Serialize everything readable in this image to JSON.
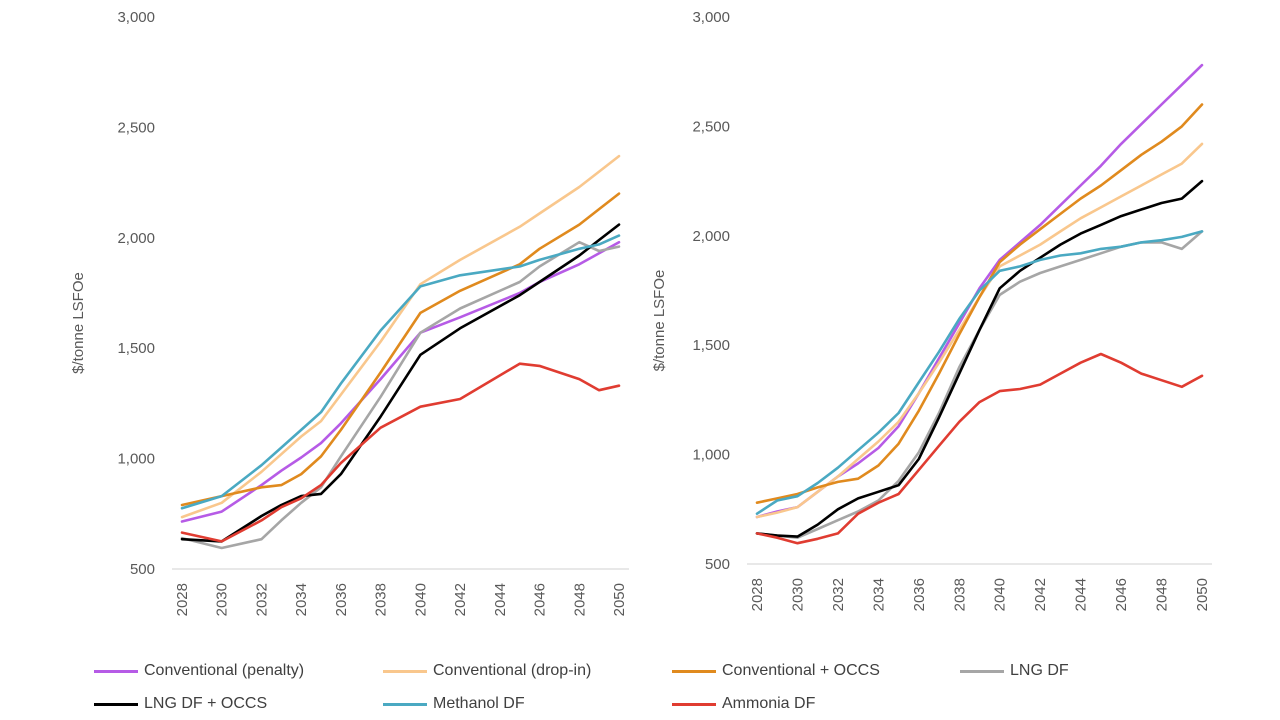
{
  "legend": [
    {
      "name": "Conventional (penalty)",
      "color": "#b65be6"
    },
    {
      "name": "Conventional (drop-in)",
      "color": "#f9c78d"
    },
    {
      "name": "Conventional + OCCS",
      "color": "#e08a1e"
    },
    {
      "name": "LNG DF",
      "color": "#a6a6a6"
    },
    {
      "name": "LNG DF + OCCS",
      "color": "#000000"
    },
    {
      "name": "Methanol DF",
      "color": "#4aa9c2"
    },
    {
      "name": "Ammonia DF",
      "color": "#e03c31"
    }
  ],
  "chart_data": [
    {
      "type": "line",
      "ylabel": "$/tonne LSFOe",
      "ylim": [
        500,
        3000
      ],
      "yticks": [
        "500",
        "1,000",
        "1,500",
        "2,000",
        "2,500",
        "3,000"
      ],
      "xticks": [
        "2028",
        "2030",
        "2032",
        "2034",
        "2036",
        "2038",
        "2040",
        "2042",
        "2044",
        "2046",
        "2048",
        "2050"
      ],
      "x": [
        2028,
        2030,
        2032,
        2033,
        2034,
        2035,
        2036,
        2038,
        2040,
        2042,
        2045,
        2046,
        2048,
        2049,
        2050
      ],
      "series": [
        {
          "name": "Conventional (penalty)",
          "values": [
            715,
            760,
            880,
            945,
            1005,
            1070,
            1160,
            1360,
            1570,
            1640,
            1750,
            1800,
            1880,
            1930,
            1980
          ]
        },
        {
          "name": "Conventional (drop-in)",
          "values": [
            735,
            800,
            940,
            1020,
            1100,
            1170,
            1290,
            1530,
            1790,
            1900,
            2050,
            2110,
            2230,
            2300,
            2370
          ]
        },
        {
          "name": "Conventional + OCCS",
          "values": [
            790,
            830,
            870,
            880,
            930,
            1010,
            1130,
            1390,
            1660,
            1760,
            1880,
            1950,
            2060,
            2130,
            2200
          ]
        },
        {
          "name": "LNG DF",
          "values": [
            640,
            595,
            635,
            720,
            800,
            870,
            1010,
            1280,
            1570,
            1680,
            1800,
            1870,
            1980,
            1940,
            1960
          ]
        },
        {
          "name": "LNG DF + OCCS",
          "values": [
            635,
            625,
            740,
            790,
            830,
            840,
            930,
            1190,
            1470,
            1590,
            1740,
            1800,
            1920,
            1990,
            2060
          ]
        },
        {
          "name": "Methanol DF",
          "values": [
            775,
            830,
            970,
            1050,
            1130,
            1210,
            1340,
            1580,
            1780,
            1830,
            1870,
            1900,
            1950,
            1970,
            2010
          ]
        },
        {
          "name": "Ammonia DF",
          "values": [
            665,
            625,
            720,
            780,
            820,
            880,
            980,
            1140,
            1235,
            1270,
            1430,
            1420,
            1360,
            1310,
            1330
          ]
        }
      ]
    },
    {
      "type": "line",
      "ylabel": "$/tonne LSFOe",
      "ylim": [
        500,
        3000
      ],
      "yticks": [
        "500",
        "1,000",
        "1,500",
        "2,000",
        "2,500",
        "3,000"
      ],
      "xticks": [
        "2028",
        "2030",
        "2032",
        "2034",
        "2036",
        "2038",
        "2040",
        "2042",
        "2044",
        "2046",
        "2048",
        "2050"
      ],
      "x": [
        2028,
        2029,
        2030,
        2031,
        2032,
        2033,
        2034,
        2035,
        2036,
        2037,
        2038,
        2039,
        2040,
        2041,
        2042,
        2043,
        2044,
        2045,
        2046,
        2047,
        2048,
        2049,
        2050
      ],
      "series": [
        {
          "name": "Conventional (penalty)",
          "values": [
            715,
            740,
            760,
            830,
            900,
            960,
            1030,
            1130,
            1280,
            1440,
            1600,
            1760,
            1890,
            1970,
            2050,
            2140,
            2230,
            2320,
            2420,
            2510,
            2600,
            2690,
            2780
          ]
        },
        {
          "name": "Conventional (drop-in)",
          "values": [
            715,
            735,
            760,
            830,
            900,
            980,
            1060,
            1150,
            1280,
            1420,
            1570,
            1720,
            1860,
            1910,
            1960,
            2020,
            2080,
            2130,
            2180,
            2230,
            2280,
            2330,
            2420
          ]
        },
        {
          "name": "Conventional + OCCS",
          "values": [
            780,
            800,
            820,
            850,
            875,
            890,
            950,
            1050,
            1200,
            1370,
            1550,
            1720,
            1880,
            1960,
            2030,
            2100,
            2170,
            2230,
            2300,
            2370,
            2430,
            2500,
            2600
          ]
        },
        {
          "name": "LNG DF",
          "values": [
            640,
            630,
            620,
            660,
            700,
            740,
            790,
            880,
            1010,
            1190,
            1400,
            1570,
            1730,
            1790,
            1830,
            1860,
            1890,
            1920,
            1950,
            1970,
            1970,
            1940,
            2020
          ]
        },
        {
          "name": "LNG DF + OCCS",
          "values": [
            640,
            630,
            625,
            680,
            750,
            800,
            830,
            860,
            980,
            1170,
            1370,
            1570,
            1760,
            1840,
            1900,
            1960,
            2010,
            2050,
            2090,
            2120,
            2150,
            2170,
            2250
          ]
        },
        {
          "name": "Methanol DF",
          "values": [
            730,
            790,
            810,
            870,
            940,
            1020,
            1100,
            1190,
            1330,
            1470,
            1620,
            1750,
            1840,
            1860,
            1890,
            1910,
            1920,
            1940,
            1950,
            1970,
            1980,
            1995,
            2020
          ]
        },
        {
          "name": "Ammonia DF",
          "values": [
            640,
            620,
            595,
            615,
            640,
            730,
            780,
            820,
            930,
            1040,
            1150,
            1240,
            1290,
            1300,
            1320,
            1370,
            1420,
            1460,
            1420,
            1370,
            1340,
            1310,
            1360
          ]
        }
      ]
    }
  ]
}
